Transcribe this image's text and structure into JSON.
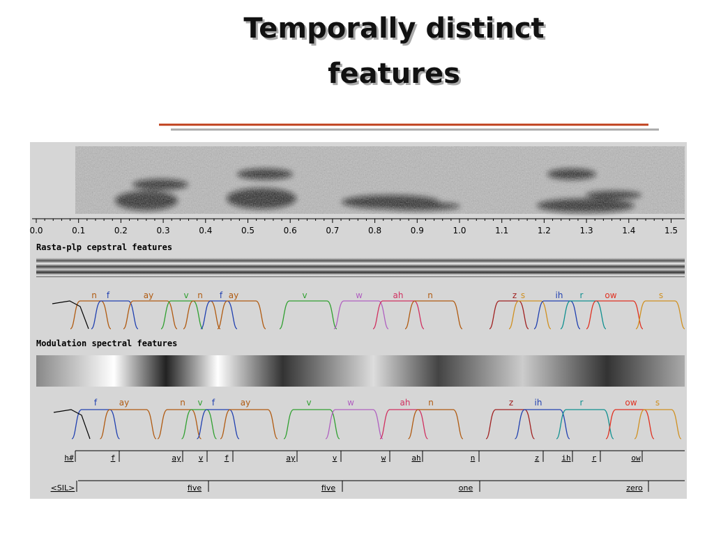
{
  "title": [
    "Temporally distinct",
    "features"
  ],
  "figure": {
    "time_axis": [
      "0.0",
      "0.1",
      "0.2",
      "0.3",
      "0.4",
      "0.5",
      "0.6",
      "0.7",
      "0.8",
      "0.9",
      "1.0",
      "1.1",
      "1.2",
      "1.3",
      "1.4",
      "1.5"
    ],
    "panels": [
      {
        "label": "Rasta-plp cepstral features",
        "phones": [
          {
            "text": "n",
            "color": "#b05a10"
          },
          {
            "text": "f",
            "color": "#2040b0"
          },
          {
            "text": "ay",
            "color": "#b05a10"
          },
          {
            "text": "v",
            "color": "#30a030"
          },
          {
            "text": "n",
            "color": "#b05a10"
          },
          {
            "text": "f",
            "color": "#2040b0"
          },
          {
            "text": "ay",
            "color": "#b05a10"
          },
          {
            "text": "v",
            "color": "#30a030"
          },
          {
            "text": "w",
            "color": "#b060c0"
          },
          {
            "text": "ah",
            "color": "#d03060"
          },
          {
            "text": "n",
            "color": "#b05a10"
          },
          {
            "text": "z",
            "color": "#a02020"
          },
          {
            "text": "s",
            "color": "#d09020"
          },
          {
            "text": "ih",
            "color": "#2040b0"
          },
          {
            "text": "r",
            "color": "#109090"
          },
          {
            "text": "ow",
            "color": "#e03020"
          },
          {
            "text": "s",
            "color": "#d09020"
          }
        ]
      },
      {
        "label": "Modulation spectral features",
        "phones": [
          {
            "text": "f",
            "color": "#2040b0"
          },
          {
            "text": "ay",
            "color": "#b05a10"
          },
          {
            "text": "n",
            "color": "#b05a10"
          },
          {
            "text": "v",
            "color": "#30a030"
          },
          {
            "text": "f",
            "color": "#2040b0"
          },
          {
            "text": "ay",
            "color": "#b05a10"
          },
          {
            "text": "v",
            "color": "#30a030"
          },
          {
            "text": "w",
            "color": "#b060c0"
          },
          {
            "text": "ah",
            "color": "#d03060"
          },
          {
            "text": "n",
            "color": "#b05a10"
          },
          {
            "text": "z",
            "color": "#a02020"
          },
          {
            "text": "ih",
            "color": "#2040b0"
          },
          {
            "text": "r",
            "color": "#109090"
          },
          {
            "text": "ow",
            "color": "#e03020"
          },
          {
            "text": "s",
            "color": "#d09020"
          }
        ]
      }
    ],
    "segments": [
      "h#",
      "f",
      "ay",
      "v",
      "f",
      "ay",
      "v",
      "w",
      "ah",
      "n",
      "z",
      "ih",
      "r",
      "ow"
    ],
    "words": [
      "<SIL>",
      "five",
      "five",
      "one",
      "zero"
    ]
  }
}
